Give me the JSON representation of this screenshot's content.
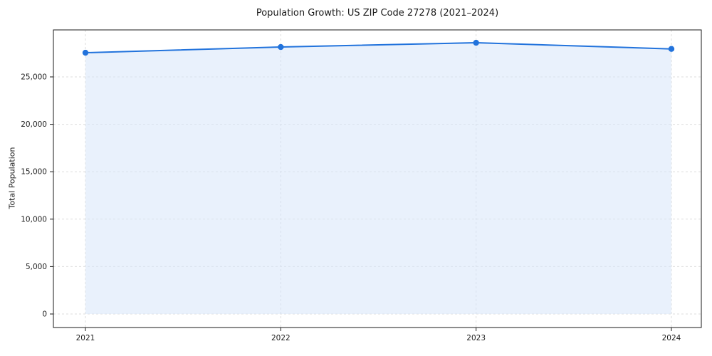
{
  "chart_data": {
    "type": "area",
    "title": "Population Growth: US ZIP Code 27278 (2021–2024)",
    "xlabel": "",
    "ylabel": "Total Population",
    "categories": [
      "2021",
      "2022",
      "2023",
      "2024"
    ],
    "series": [
      {
        "name": "Total Population",
        "values": [
          27550,
          28150,
          28600,
          27950
        ]
      }
    ],
    "ylim": [
      0,
      30000
    ],
    "y_ticks": [
      {
        "value": 0,
        "label": "0"
      },
      {
        "value": 5000,
        "label": "5,000"
      },
      {
        "value": 10000,
        "label": "10,000"
      },
      {
        "value": 15000,
        "label": "15,000"
      },
      {
        "value": 20000,
        "label": "20,000"
      },
      {
        "value": 25000,
        "label": "25,000"
      }
    ],
    "grid": true,
    "grid_style": "dashed",
    "legend": "none",
    "marker": "circle",
    "colors": {
      "line": "#2273dc",
      "marker": "#2273dc",
      "fill": "#d7e6fa",
      "fill_opacity": 0.55,
      "grid": "#dedede",
      "axis": "#1a1a1a",
      "text": "#1c1c1c",
      "background": "#ffffff"
    }
  }
}
